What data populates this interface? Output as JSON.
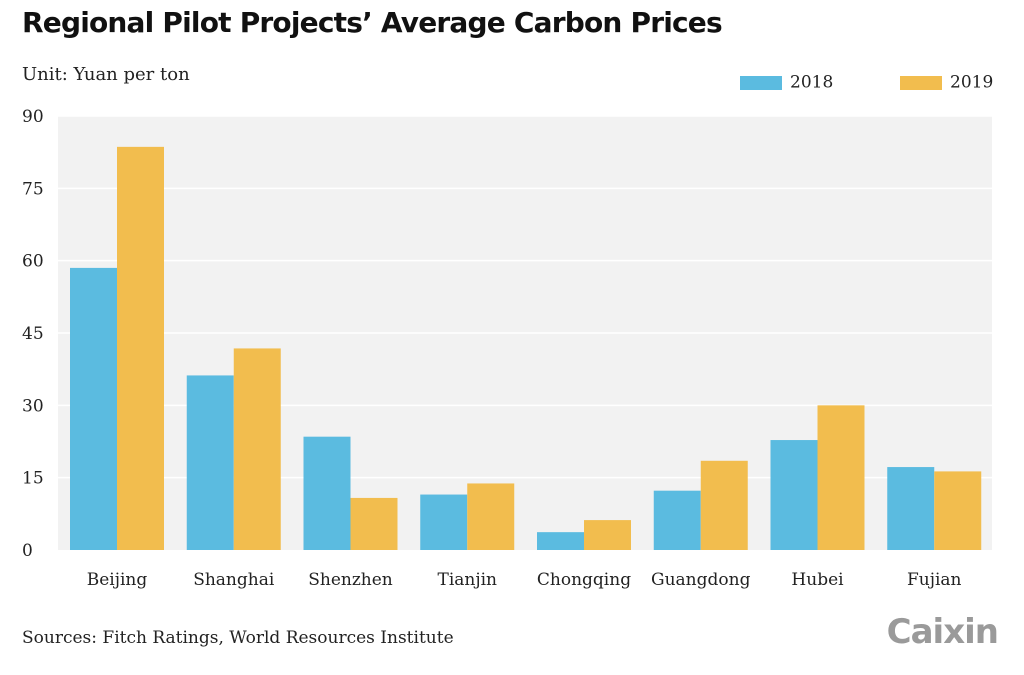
{
  "chart_data": {
    "type": "bar",
    "title": "Regional Pilot Projects’ Average Carbon Prices",
    "unit_label": "Unit: Yuan per ton",
    "categories": [
      "Beijing",
      "Shanghai",
      "Shenzhen",
      "Tianjin",
      "Chongqing",
      "Guangdong",
      "Hubei",
      "Fujian"
    ],
    "series": [
      {
        "name": "2018",
        "color": "#5bbbe0",
        "values": [
          58.5,
          36.2,
          23.5,
          11.5,
          3.7,
          12.3,
          22.8,
          17.2
        ]
      },
      {
        "name": "2019",
        "color": "#f2bd4e",
        "values": [
          83.6,
          41.8,
          10.8,
          13.8,
          6.2,
          18.5,
          30.0,
          16.3
        ]
      }
    ],
    "yticks": [
      0,
      15,
      30,
      45,
      60,
      75,
      90
    ],
    "ylim": [
      0,
      90
    ],
    "grid": true,
    "legend_position": "top-right",
    "plot_background": "#f2f2f2",
    "source": "Sources: Fitch Ratings, World Resources Institute",
    "logo_text": "Caixin"
  }
}
